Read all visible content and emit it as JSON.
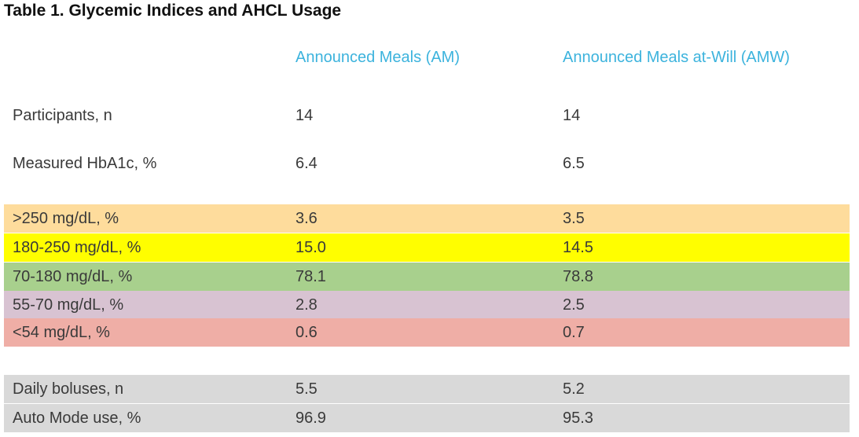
{
  "title": "Table 1. Glycemic Indices and AHCL Usage",
  "headers": {
    "am": "Announced Meals (AM)",
    "amw": "Announced Meals at-Will (AMW)"
  },
  "rows": [
    {
      "label": "Participants, n",
      "am": "14",
      "amw": "14",
      "color": "#ffffff"
    },
    {
      "label": "Measured HbA1c, %",
      "am": "6.4",
      "amw": "6.5",
      "color": "#ffffff"
    },
    {
      "label": ">250 mg/dL, %",
      "am": "3.6",
      "amw": "3.5",
      "color": "#fedc9c"
    },
    {
      "label": "180-250 mg/dL, %",
      "am": "15.0",
      "amw": "14.5",
      "color": "#fffe00"
    },
    {
      "label": "70-180 mg/dL, %",
      "am": "78.1",
      "amw": "78.8",
      "color": "#a8d08d"
    },
    {
      "label": "55-70 mg/dL, %",
      "am": "2.8",
      "amw": "2.5",
      "color": "#d8c3d2"
    },
    {
      "label": "<54 mg/dL, %",
      "am": "0.6",
      "amw": "0.7",
      "color": "#efaea6"
    },
    {
      "label": "Daily boluses, n",
      "am": "5.5",
      "amw": "5.2",
      "color": "#d9d9d9"
    },
    {
      "label": "Auto Mode use, %",
      "am": "96.9",
      "amw": "95.3",
      "color": "#d9d9d9"
    }
  ]
}
